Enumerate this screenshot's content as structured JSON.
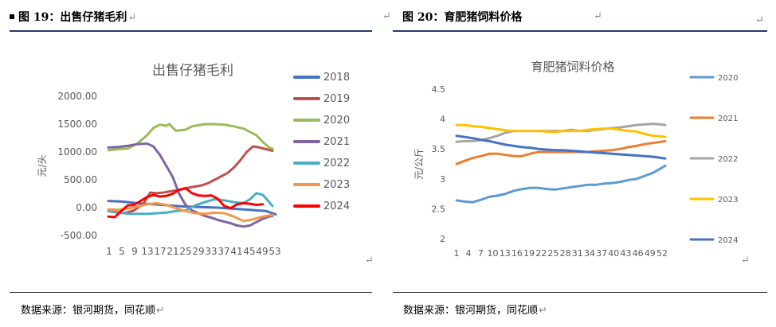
{
  "left": {
    "fig_title": "图 19：出售仔猪毛利",
    "source": "数据来源：银河期货，同花顺",
    "chart_data": {
      "type": "line",
      "title": "出售仔猪毛利",
      "ylabel": "元/头",
      "ylim": [
        -500,
        2000
      ],
      "y_ticks": [
        "2000.00",
        "1500.00",
        "1000.00",
        "500.00",
        "0.00",
        "-500.00"
      ],
      "y_tick_values": [
        2000,
        1500,
        1000,
        500,
        0,
        -500
      ],
      "x_ticks": [
        "1",
        "5",
        "9",
        "13",
        "17",
        "21",
        "25",
        "29",
        "33",
        "37",
        "41",
        "45",
        "49",
        "53"
      ],
      "x_range": [
        1,
        53
      ],
      "series": [
        {
          "name": "2018",
          "color": "#4472c4",
          "width": 3,
          "x": [
            1,
            5,
            10,
            15,
            20,
            25,
            30,
            35,
            40,
            45,
            50,
            53
          ],
          "y": [
            120,
            110,
            80,
            60,
            40,
            20,
            10,
            0,
            -20,
            -40,
            -60,
            -120
          ]
        },
        {
          "name": "2019",
          "color": "#c0504d",
          "width": 3,
          "x": [
            1,
            3,
            6,
            9,
            12,
            14,
            16,
            18,
            20,
            22,
            24,
            26,
            28,
            30,
            32,
            34,
            36,
            38,
            40,
            42,
            44,
            46,
            48,
            50,
            52
          ],
          "y": [
            -60,
            -80,
            -100,
            -50,
            80,
            270,
            260,
            270,
            290,
            310,
            330,
            360,
            380,
            400,
            440,
            500,
            560,
            620,
            720,
            850,
            1000,
            1100,
            1080,
            1050,
            1020
          ]
        },
        {
          "name": "2020",
          "color": "#9bbb59",
          "width": 3,
          "x": [
            1,
            4,
            7,
            10,
            13,
            15,
            17,
            19,
            20,
            22,
            25,
            27,
            29,
            31,
            34,
            37,
            40,
            43,
            45,
            47,
            49,
            51,
            52
          ],
          "y": [
            1030,
            1050,
            1060,
            1150,
            1300,
            1430,
            1490,
            1470,
            1500,
            1380,
            1400,
            1460,
            1480,
            1500,
            1500,
            1490,
            1460,
            1420,
            1360,
            1300,
            1180,
            1080,
            1060
          ]
        },
        {
          "name": "2021",
          "color": "#8064a2",
          "width": 3,
          "x": [
            1,
            4,
            7,
            10,
            13,
            15,
            17,
            19,
            21,
            23,
            25,
            27,
            29,
            31,
            33,
            35,
            37,
            39,
            41,
            43,
            45,
            47,
            49,
            51,
            52
          ],
          "y": [
            1080,
            1090,
            1110,
            1140,
            1150,
            1100,
            950,
            750,
            550,
            250,
            50,
            -50,
            -100,
            -150,
            -180,
            -220,
            -250,
            -280,
            -320,
            -340,
            -320,
            -260,
            -200,
            -160,
            -150
          ]
        },
        {
          "name": "2022",
          "color": "#4bacc6",
          "width": 3,
          "x": [
            1,
            4,
            7,
            10,
            13,
            16,
            19,
            22,
            25,
            28,
            31,
            34,
            37,
            40,
            43,
            45,
            47,
            49,
            51,
            52
          ],
          "y": [
            -60,
            -80,
            -110,
            -110,
            -110,
            -100,
            -90,
            -60,
            -50,
            40,
            100,
            150,
            130,
            100,
            80,
            150,
            260,
            230,
            100,
            30
          ]
        },
        {
          "name": "2023",
          "color": "#f79646",
          "width": 3,
          "x": [
            1,
            4,
            7,
            10,
            13,
            16,
            19,
            22,
            25,
            28,
            31,
            34,
            37,
            40,
            43,
            46,
            49,
            52
          ],
          "y": [
            -30,
            -40,
            -20,
            20,
            60,
            80,
            50,
            -10,
            -60,
            -100,
            -110,
            -90,
            -100,
            -160,
            -240,
            -210,
            -160,
            -130
          ]
        },
        {
          "name": "2024",
          "color": "#ff0000",
          "width": 3,
          "x": [
            1,
            3,
            5,
            7,
            9,
            11,
            13,
            15,
            17,
            19,
            21,
            23,
            25,
            27,
            29,
            31,
            33,
            35,
            37,
            39,
            41,
            43,
            45,
            47,
            49
          ],
          "y": [
            -160,
            -170,
            -60,
            40,
            50,
            120,
            190,
            230,
            200,
            210,
            250,
            320,
            350,
            260,
            220,
            210,
            220,
            160,
            30,
            -10,
            60,
            80,
            70,
            50,
            60
          ]
        }
      ]
    }
  },
  "right": {
    "fig_title": "图 20：育肥猪饲料价格",
    "source": "数据来源：银河期货，同花顺",
    "chart_data": {
      "type": "line",
      "title": "育肥猪饲料价格",
      "ylabel": "元/公斤",
      "ylim": [
        2,
        4.5
      ],
      "y_ticks": [
        "4.5",
        "4",
        "3.5",
        "3",
        "2.5",
        "2"
      ],
      "y_tick_values": [
        4.5,
        4,
        3.5,
        3,
        2.5,
        2
      ],
      "x_ticks": [
        "1",
        "4",
        "7",
        "10",
        "13",
        "16",
        "19",
        "22",
        "25",
        "28",
        "31",
        "34",
        "37",
        "40",
        "43",
        "46",
        "49",
        "52"
      ],
      "x_range": [
        1,
        52
      ],
      "series": [
        {
          "name": "2020",
          "color": "#5b9bd5",
          "width": 3,
          "x": [
            1,
            3,
            5,
            7,
            9,
            11,
            13,
            15,
            17,
            19,
            21,
            23,
            25,
            27,
            29,
            31,
            33,
            35,
            37,
            39,
            41,
            43,
            45,
            47,
            49,
            51,
            52
          ],
          "y": [
            2.64,
            2.62,
            2.61,
            2.65,
            2.7,
            2.72,
            2.75,
            2.8,
            2.83,
            2.85,
            2.85,
            2.83,
            2.82,
            2.84,
            2.86,
            2.88,
            2.9,
            2.9,
            2.92,
            2.93,
            2.95,
            2.98,
            3.0,
            3.05,
            3.1,
            3.18,
            3.22
          ]
        },
        {
          "name": "2021",
          "color": "#ed7d31",
          "width": 3,
          "x": [
            1,
            3,
            5,
            7,
            9,
            11,
            13,
            15,
            17,
            19,
            21,
            23,
            25,
            27,
            29,
            31,
            33,
            35,
            37,
            39,
            41,
            43,
            45,
            47,
            49,
            51,
            52
          ],
          "y": [
            3.25,
            3.3,
            3.35,
            3.38,
            3.42,
            3.42,
            3.4,
            3.38,
            3.38,
            3.42,
            3.45,
            3.45,
            3.45,
            3.45,
            3.45,
            3.45,
            3.45,
            3.46,
            3.47,
            3.48,
            3.5,
            3.53,
            3.55,
            3.58,
            3.6,
            3.62,
            3.63
          ]
        },
        {
          "name": "2022",
          "color": "#a5a5a5",
          "width": 3,
          "x": [
            1,
            3,
            5,
            7,
            9,
            11,
            13,
            15,
            17,
            19,
            21,
            23,
            25,
            27,
            29,
            31,
            33,
            35,
            37,
            39,
            41,
            43,
            45,
            47,
            49,
            51,
            52
          ],
          "y": [
            3.62,
            3.63,
            3.63,
            3.65,
            3.68,
            3.72,
            3.77,
            3.8,
            3.8,
            3.8,
            3.8,
            3.8,
            3.8,
            3.8,
            3.82,
            3.8,
            3.8,
            3.82,
            3.83,
            3.85,
            3.86,
            3.88,
            3.9,
            3.91,
            3.92,
            3.91,
            3.9
          ]
        },
        {
          "name": "2023",
          "color": "#ffc000",
          "width": 3,
          "x": [
            1,
            3,
            5,
            7,
            9,
            11,
            13,
            15,
            17,
            19,
            21,
            23,
            25,
            27,
            29,
            31,
            33,
            35,
            37,
            39,
            41,
            43,
            45,
            47,
            49,
            51,
            52
          ],
          "y": [
            3.9,
            3.9,
            3.88,
            3.87,
            3.85,
            3.83,
            3.81,
            3.8,
            3.8,
            3.8,
            3.8,
            3.79,
            3.78,
            3.8,
            3.8,
            3.8,
            3.82,
            3.83,
            3.84,
            3.84,
            3.82,
            3.8,
            3.79,
            3.75,
            3.72,
            3.71,
            3.7
          ]
        },
        {
          "name": "2024",
          "color": "#4472c4",
          "width": 3,
          "x": [
            1,
            3,
            5,
            7,
            9,
            11,
            13,
            15,
            17,
            19,
            21,
            23,
            25,
            27,
            29,
            31,
            33,
            35,
            37,
            39,
            41,
            43,
            45,
            47,
            49,
            51,
            52
          ],
          "y": [
            3.72,
            3.7,
            3.68,
            3.65,
            3.63,
            3.6,
            3.57,
            3.55,
            3.53,
            3.52,
            3.5,
            3.49,
            3.48,
            3.48,
            3.47,
            3.46,
            3.45,
            3.44,
            3.43,
            3.42,
            3.41,
            3.4,
            3.39,
            3.38,
            3.37,
            3.35,
            3.34
          ]
        }
      ]
    }
  }
}
